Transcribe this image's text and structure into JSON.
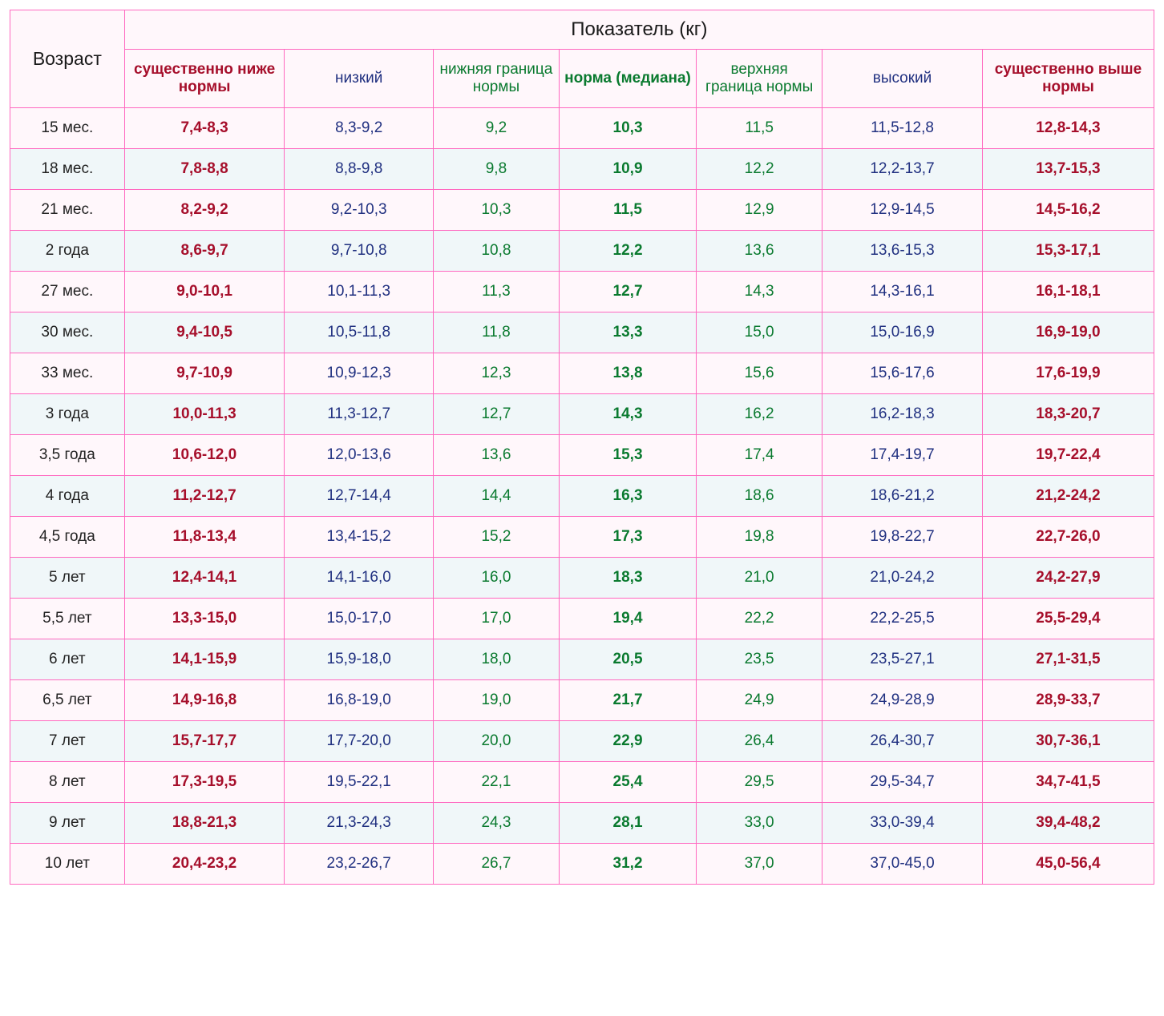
{
  "table": {
    "type": "table",
    "border_color": "#ff69c0",
    "row_bg_odd": "#fff7fb",
    "row_bg_even": "#f0f7f9",
    "header_bg": "#fff7fb",
    "font_family": "Verdana",
    "header": {
      "age_label": "Возраст",
      "metric_label": "Показатель (кг)",
      "columns": [
        {
          "label": "существенно ниже нормы",
          "color": "#a60f2b",
          "bold": true,
          "class": "sub-red"
        },
        {
          "label": "низкий",
          "color": "#203080",
          "bold": false,
          "class": "sub-blue"
        },
        {
          "label": "нижняя граница нормы",
          "color": "#0a7a2f",
          "bold": false,
          "class": "sub-green"
        },
        {
          "label": "норма (медиана)",
          "color": "#0a7a2f",
          "bold": true,
          "class": "sub-greenb"
        },
        {
          "label": "верхняя граница нормы",
          "color": "#0a7a2f",
          "bold": false,
          "class": "sub-green"
        },
        {
          "label": "высокий",
          "color": "#203080",
          "bold": false,
          "class": "sub-blue"
        },
        {
          "label": "существенно выше нормы",
          "color": "#a60f2b",
          "bold": true,
          "class": "sub-red"
        }
      ]
    },
    "cell_classes": [
      "cell-red",
      "cell-blue",
      "cell-green",
      "cell-greenb",
      "cell-green",
      "cell-blue",
      "cell-red"
    ],
    "rows": [
      {
        "age": "15 мес.",
        "v": [
          "7,4-8,3",
          "8,3-9,2",
          "9,2",
          "10,3",
          "11,5",
          "11,5-12,8",
          "12,8-14,3"
        ]
      },
      {
        "age": "18 мес.",
        "v": [
          "7,8-8,8",
          "8,8-9,8",
          "9,8",
          "10,9",
          "12,2",
          "12,2-13,7",
          "13,7-15,3"
        ]
      },
      {
        "age": "21 мес.",
        "v": [
          "8,2-9,2",
          "9,2-10,3",
          "10,3",
          "11,5",
          "12,9",
          "12,9-14,5",
          "14,5-16,2"
        ]
      },
      {
        "age": "2 года",
        "v": [
          "8,6-9,7",
          "9,7-10,8",
          "10,8",
          "12,2",
          "13,6",
          "13,6-15,3",
          "15,3-17,1"
        ]
      },
      {
        "age": "27 мес.",
        "v": [
          "9,0-10,1",
          "10,1-11,3",
          "11,3",
          "12,7",
          "14,3",
          "14,3-16,1",
          "16,1-18,1"
        ]
      },
      {
        "age": "30 мес.",
        "v": [
          "9,4-10,5",
          "10,5-11,8",
          "11,8",
          "13,3",
          "15,0",
          "15,0-16,9",
          "16,9-19,0"
        ]
      },
      {
        "age": "33 мес.",
        "v": [
          "9,7-10,9",
          "10,9-12,3",
          "12,3",
          "13,8",
          "15,6",
          "15,6-17,6",
          "17,6-19,9"
        ]
      },
      {
        "age": "3 года",
        "v": [
          "10,0-11,3",
          "11,3-12,7",
          "12,7",
          "14,3",
          "16,2",
          "16,2-18,3",
          "18,3-20,7"
        ]
      },
      {
        "age": "3,5 года",
        "v": [
          "10,6-12,0",
          "12,0-13,6",
          "13,6",
          "15,3",
          "17,4",
          "17,4-19,7",
          "19,7-22,4"
        ]
      },
      {
        "age": "4 года",
        "v": [
          "11,2-12,7",
          "12,7-14,4",
          "14,4",
          "16,3",
          "18,6",
          "18,6-21,2",
          "21,2-24,2"
        ]
      },
      {
        "age": "4,5 года",
        "v": [
          "11,8-13,4",
          "13,4-15,2",
          "15,2",
          "17,3",
          "19,8",
          "19,8-22,7",
          "22,7-26,0"
        ]
      },
      {
        "age": "5 лет",
        "v": [
          "12,4-14,1",
          "14,1-16,0",
          "16,0",
          "18,3",
          "21,0",
          "21,0-24,2",
          "24,2-27,9"
        ]
      },
      {
        "age": "5,5 лет",
        "v": [
          "13,3-15,0",
          "15,0-17,0",
          "17,0",
          "19,4",
          "22,2",
          "22,2-25,5",
          "25,5-29,4"
        ]
      },
      {
        "age": "6 лет",
        "v": [
          "14,1-15,9",
          "15,9-18,0",
          "18,0",
          "20,5",
          "23,5",
          "23,5-27,1",
          "27,1-31,5"
        ]
      },
      {
        "age": "6,5 лет",
        "v": [
          "14,9-16,8",
          "16,8-19,0",
          "19,0",
          "21,7",
          "24,9",
          "24,9-28,9",
          "28,9-33,7"
        ]
      },
      {
        "age": "7 лет",
        "v": [
          "15,7-17,7",
          "17,7-20,0",
          "20,0",
          "22,9",
          "26,4",
          "26,4-30,7",
          "30,7-36,1"
        ]
      },
      {
        "age": "8 лет",
        "v": [
          "17,3-19,5",
          "19,5-22,1",
          "22,1",
          "25,4",
          "29,5",
          "29,5-34,7",
          "34,7-41,5"
        ]
      },
      {
        "age": "9 лет",
        "v": [
          "18,8-21,3",
          "21,3-24,3",
          "24,3",
          "28,1",
          "33,0",
          "33,0-39,4",
          "39,4-48,2"
        ]
      },
      {
        "age": "10 лет",
        "v": [
          "20,4-23,2",
          "23,2-26,7",
          "26,7",
          "31,2",
          "37,0",
          "37,0-45,0",
          "45,0-56,4"
        ]
      }
    ]
  }
}
